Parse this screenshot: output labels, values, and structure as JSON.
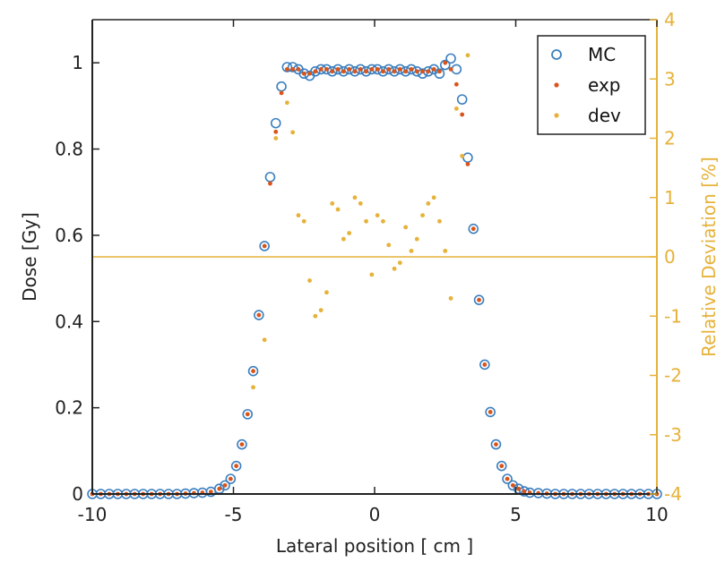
{
  "chart_data": {
    "type": "scatter",
    "title": "",
    "xlabel": "Lateral position [ cm ]",
    "ylabel": "Dose [Gy]",
    "y2label": "Relative Deviation [%]",
    "xlim": [
      -10,
      10
    ],
    "ylim": [
      0,
      1.1
    ],
    "y2lim": [
      -4,
      4
    ],
    "x_ticks": [
      -10,
      -5,
      0,
      5,
      10
    ],
    "y_ticks": [
      0,
      0.2,
      0.4,
      0.6,
      0.8,
      1
    ],
    "y2_ticks": [
      -4,
      -3,
      -2,
      -1,
      0,
      1,
      2,
      3,
      4
    ],
    "grid": false,
    "legend_position": "top-right",
    "colors": {
      "mc": "#3b7fbf",
      "exp": "#d9541a",
      "dev": "#e6b23a",
      "axis": "#222222",
      "axis2": "#e6b23a"
    },
    "series": [
      {
        "name": "MC",
        "marker": "open-circle",
        "axis": "left",
        "x": [
          -10,
          -9.7,
          -9.4,
          -9.1,
          -8.8,
          -8.5,
          -8.2,
          -7.9,
          -7.6,
          -7.3,
          -7.0,
          -6.7,
          -6.4,
          -6.1,
          -5.8,
          -5.5,
          -5.3,
          -5.1,
          -4.9,
          -4.7,
          -4.5,
          -4.3,
          -4.1,
          -3.9,
          -3.7,
          -3.5,
          -3.3,
          -3.1,
          -2.9,
          -2.7,
          -2.5,
          -2.3,
          -2.1,
          -1.9,
          -1.7,
          -1.5,
          -1.3,
          -1.1,
          -0.9,
          -0.7,
          -0.5,
          -0.3,
          -0.1,
          0.1,
          0.3,
          0.5,
          0.7,
          0.9,
          1.1,
          1.3,
          1.5,
          1.7,
          1.9,
          2.1,
          2.3,
          2.5,
          2.7,
          2.9,
          3.1,
          3.3,
          3.5,
          3.7,
          3.9,
          4.1,
          4.3,
          4.5,
          4.7,
          4.9,
          5.1,
          5.3,
          5.5,
          5.8,
          6.1,
          6.4,
          6.7,
          7.0,
          7.3,
          7.6,
          7.9,
          8.2,
          8.5,
          8.8,
          9.1,
          9.4,
          9.7,
          10
        ],
        "y": [
          0,
          0,
          0,
          0,
          0,
          0,
          0,
          0,
          0,
          0,
          0,
          0.001,
          0.002,
          0.003,
          0.005,
          0.012,
          0.02,
          0.035,
          0.065,
          0.115,
          0.185,
          0.285,
          0.415,
          0.575,
          0.735,
          0.86,
          0.945,
          0.99,
          0.99,
          0.985,
          0.975,
          0.97,
          0.98,
          0.985,
          0.985,
          0.98,
          0.985,
          0.98,
          0.985,
          0.98,
          0.985,
          0.98,
          0.985,
          0.985,
          0.98,
          0.985,
          0.98,
          0.985,
          0.98,
          0.985,
          0.98,
          0.975,
          0.98,
          0.985,
          0.975,
          0.995,
          1.01,
          0.985,
          0.915,
          0.78,
          0.615,
          0.45,
          0.3,
          0.19,
          0.115,
          0.065,
          0.035,
          0.02,
          0.012,
          0.006,
          0.003,
          0.002,
          0.001,
          0,
          0,
          0,
          0,
          0,
          0,
          0,
          0,
          0,
          0,
          0,
          0,
          0
        ]
      },
      {
        "name": "exp",
        "marker": "dot",
        "axis": "left",
        "x": [
          -10,
          -9.7,
          -9.4,
          -9.1,
          -8.8,
          -8.5,
          -8.2,
          -7.9,
          -7.6,
          -7.3,
          -7.0,
          -6.7,
          -6.4,
          -6.1,
          -5.8,
          -5.5,
          -5.3,
          -5.1,
          -4.9,
          -4.7,
          -4.5,
          -4.3,
          -4.1,
          -3.9,
          -3.7,
          -3.5,
          -3.3,
          -3.1,
          -2.9,
          -2.7,
          -2.5,
          -2.3,
          -2.1,
          -1.9,
          -1.7,
          -1.5,
          -1.3,
          -1.1,
          -0.9,
          -0.7,
          -0.5,
          -0.3,
          -0.1,
          0.1,
          0.3,
          0.5,
          0.7,
          0.9,
          1.1,
          1.3,
          1.5,
          1.7,
          1.9,
          2.1,
          2.3,
          2.5,
          2.7,
          2.9,
          3.1,
          3.3,
          3.5,
          3.7,
          3.9,
          4.1,
          4.3,
          4.5,
          4.7,
          4.9,
          5.1,
          5.3,
          5.5,
          5.8,
          6.1,
          6.4,
          6.7,
          7.0,
          7.3,
          7.6,
          7.9,
          8.2,
          8.5,
          8.8,
          9.1,
          9.4,
          9.7,
          10
        ],
        "y": [
          0,
          0,
          0,
          0,
          0,
          0,
          0,
          0,
          0,
          0,
          0,
          0.001,
          0.002,
          0.003,
          0.005,
          0.012,
          0.02,
          0.035,
          0.065,
          0.115,
          0.185,
          0.285,
          0.415,
          0.575,
          0.72,
          0.84,
          0.93,
          0.985,
          0.985,
          0.985,
          0.975,
          0.975,
          0.98,
          0.985,
          0.985,
          0.98,
          0.985,
          0.98,
          0.985,
          0.98,
          0.985,
          0.98,
          0.985,
          0.985,
          0.98,
          0.985,
          0.98,
          0.985,
          0.98,
          0.985,
          0.98,
          0.98,
          0.98,
          0.985,
          0.98,
          1.0,
          0.985,
          0.95,
          0.88,
          0.765,
          0.615,
          0.45,
          0.3,
          0.19,
          0.115,
          0.065,
          0.035,
          0.02,
          0.012,
          0.006,
          0.003,
          0.002,
          0.001,
          0,
          0,
          0,
          0,
          0,
          0,
          0,
          0,
          0,
          0,
          0,
          0,
          0
        ]
      },
      {
        "name": "dev",
        "marker": "dot",
        "axis": "right",
        "x": [
          -4.3,
          -3.9,
          -3.5,
          -3.1,
          -2.9,
          -2.7,
          -2.5,
          -2.3,
          -2.1,
          -1.9,
          -1.7,
          -1.5,
          -1.3,
          -1.1,
          -0.9,
          -0.7,
          -0.5,
          -0.3,
          -0.1,
          0.1,
          0.3,
          0.5,
          0.7,
          0.9,
          1.1,
          1.3,
          1.5,
          1.7,
          1.9,
          2.1,
          2.3,
          2.5,
          2.7,
          2.9,
          3.1,
          3.3
        ],
        "y": [
          -2.2,
          -1.4,
          2.0,
          2.6,
          2.1,
          0.7,
          0.6,
          -0.4,
          -1.0,
          -0.9,
          -0.6,
          0.9,
          0.8,
          0.3,
          0.4,
          1.0,
          0.9,
          0.6,
          -0.3,
          0.7,
          0.6,
          0.2,
          -0.2,
          -0.1,
          0.5,
          0.1,
          0.3,
          0.7,
          0.9,
          1.0,
          0.6,
          0.1,
          -0.7,
          2.5,
          1.7,
          3.4
        ]
      }
    ],
    "reference_line": {
      "axis": "right",
      "y": 0
    }
  }
}
